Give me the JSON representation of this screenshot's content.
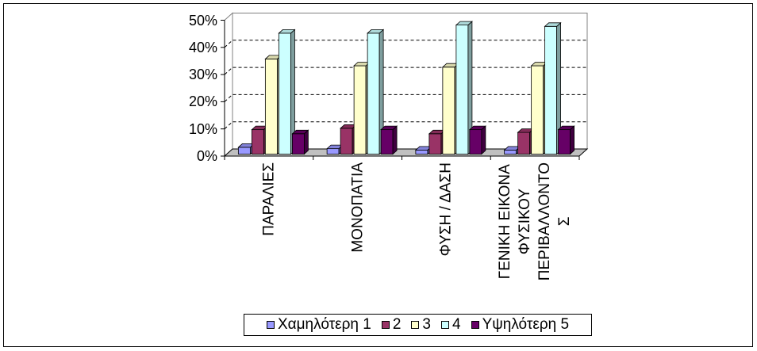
{
  "chart_data": {
    "type": "bar",
    "three_d": true,
    "categories": [
      "ΠΑΡΑΛΙΕΣ",
      "ΜΟΝΟΠΑΤΙΑ",
      "ΦΥΣΗ / ΔΑΣΗ",
      "ΓΕΝΙΚΗ ΕΙΚΟΝΑ\nΦΥΣΙΚΟΥ\nΠΕΡΙΒΑΛΛΟΝΤΟ\nΣ"
    ],
    "series": [
      {
        "name": "Χαμηλότερη 1",
        "color": "#9999FF",
        "values": [
          2.5,
          2,
          1.5,
          1.5
        ]
      },
      {
        "name": "2",
        "color": "#993366",
        "values": [
          9,
          9.5,
          7.5,
          8
        ]
      },
      {
        "name": "3",
        "color": "#FFFFCC",
        "values": [
          35,
          32.5,
          32,
          32.5
        ]
      },
      {
        "name": "4",
        "color": "#CCFFFF",
        "values": [
          44.5,
          44.5,
          47.5,
          47
        ]
      },
      {
        "name": "Υψηλότερη 5",
        "color": "#660066",
        "values": [
          7.5,
          9,
          9,
          9
        ]
      }
    ],
    "ylim": [
      0,
      50
    ],
    "y_ticks": [
      0,
      10,
      20,
      30,
      40,
      50
    ],
    "y_tick_labels": [
      "0%",
      "10%",
      "20%",
      "30%",
      "40%",
      "50%"
    ],
    "gridlines": true,
    "legend_position": "bottom",
    "wall_color": "#FFFFFF",
    "floor_color": "#C0C0C0"
  }
}
